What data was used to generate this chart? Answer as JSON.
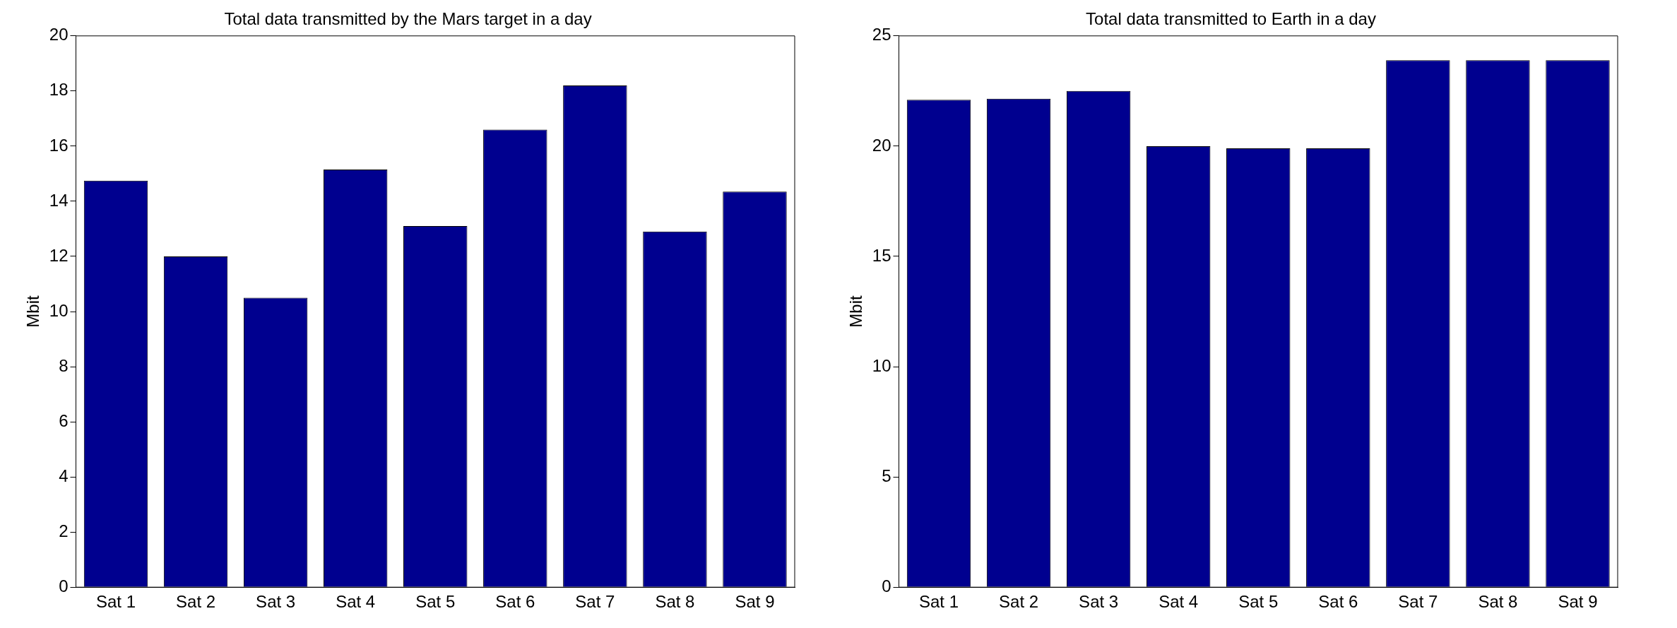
{
  "chart_data": [
    {
      "type": "bar",
      "title": "Total data transmitted by the Mars target in a day",
      "ylabel": "Mbit",
      "categories": [
        "Sat 1",
        "Sat 2",
        "Sat 3",
        "Sat 4",
        "Sat 5",
        "Sat 6",
        "Sat 7",
        "Sat 8",
        "Sat 9"
      ],
      "values": [
        14.75,
        12.0,
        10.5,
        15.15,
        13.1,
        16.6,
        18.2,
        12.9,
        14.35
      ],
      "color": "#00008f",
      "ylim": [
        0,
        20
      ],
      "yticks": [
        0,
        2,
        4,
        6,
        8,
        10,
        12,
        14,
        16,
        18,
        20
      ],
      "grid": false
    },
    {
      "type": "bar",
      "title": "Total data transmitted to Earth in a day",
      "ylabel": "Mbit",
      "categories": [
        "Sat 1",
        "Sat 2",
        "Sat 3",
        "Sat 4",
        "Sat 5",
        "Sat 6",
        "Sat 7",
        "Sat 8",
        "Sat 9"
      ],
      "values": [
        22.1,
        22.15,
        22.5,
        20.0,
        19.9,
        19.9,
        23.9,
        23.9,
        23.9
      ],
      "color": "#00008f",
      "ylim": [
        0,
        25
      ],
      "yticks": [
        0,
        5,
        10,
        15,
        20,
        25
      ],
      "grid": false
    }
  ]
}
